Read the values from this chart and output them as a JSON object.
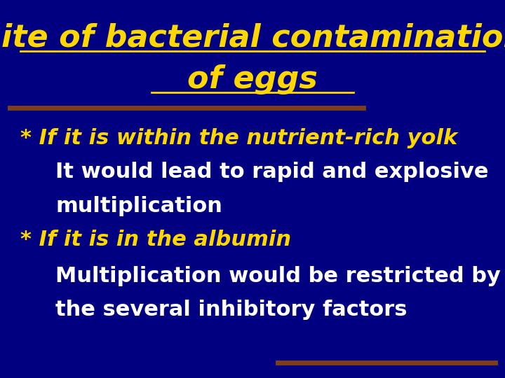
{
  "background_color": "#000080",
  "title_line1": "Site of bacterial contamination",
  "title_line2": "of eggs",
  "title_color": "#FFD700",
  "title_fontsize": 32,
  "divider_color": "#8B4513",
  "bullet1_text": "* If it is within the nutrient-rich yolk",
  "bullet1_color": "#FFD700",
  "bullet1_fontsize": 22,
  "sub1_line1": "It would lead to rapid and explosive",
  "sub1_line2": "multiplication",
  "sub1_color": "#FFFFFF",
  "sub1_fontsize": 22,
  "bullet2_text": "* If it is in the albumin",
  "bullet2_color": "#FFD700",
  "bullet2_fontsize": 22,
  "sub2_line1": "Multiplication would be restricted by",
  "sub2_line2": "the several inhibitory factors",
  "sub2_color": "#FFFFFF",
  "sub2_fontsize": 22,
  "fig_width": 7.2,
  "fig_height": 5.4,
  "dpi": 100
}
